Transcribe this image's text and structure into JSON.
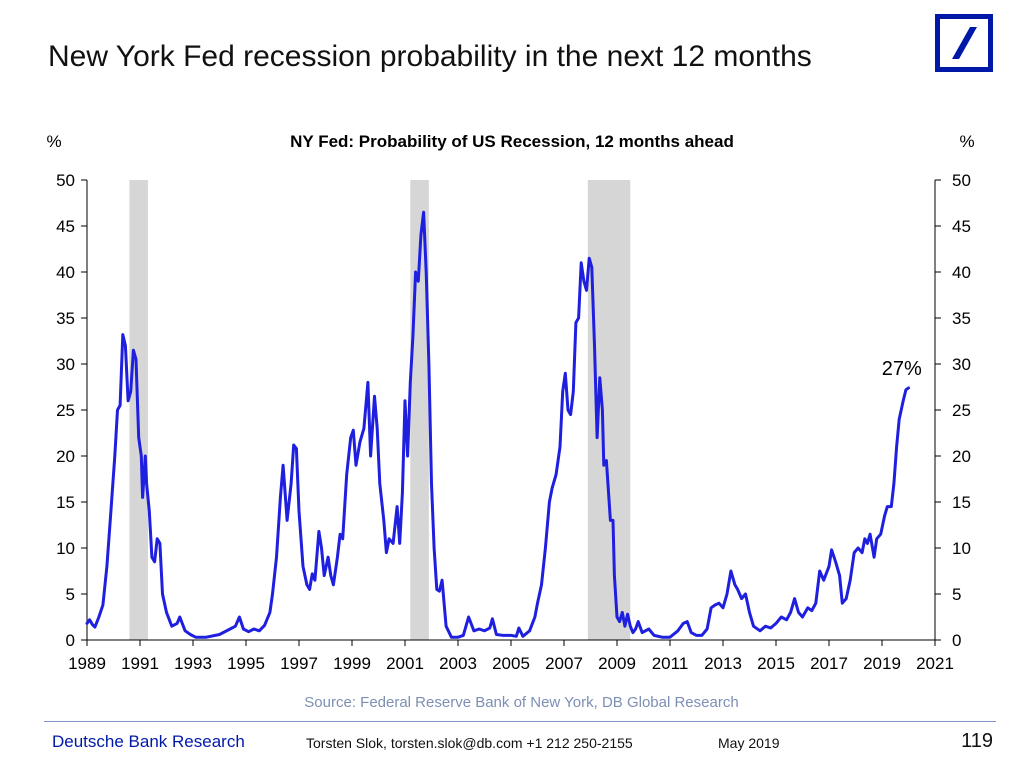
{
  "slide": {
    "title": "New York Fed recession probability in the next 12 months",
    "source": "Source: Federal Reserve Bank of New York, DB Global Research",
    "footer": {
      "brand": "Deutsche Bank Research",
      "author": "Torsten Slok, torsten.slok@db.com  +1 212 250-2155",
      "date": "May 2019",
      "page": "119"
    },
    "logo_color": "#0018a8"
  },
  "chart_data": {
    "type": "line",
    "title": "NY Fed: Probability of US Recession, 12 months ahead",
    "ylabel_left": "%",
    "ylabel_right": "%",
    "xlim": [
      1989,
      2021
    ],
    "ylim": [
      0,
      50
    ],
    "x_ticks": [
      "1989",
      "1991",
      "1993",
      "1995",
      "1997",
      "1999",
      "2001",
      "2003",
      "2005",
      "2007",
      "2009",
      "2011",
      "2013",
      "2015",
      "2017",
      "2019",
      "2021"
    ],
    "y_ticks": [
      "0",
      "5",
      "10",
      "15",
      "20",
      "25",
      "30",
      "35",
      "40",
      "45",
      "50"
    ],
    "annotation": {
      "text": "27%",
      "x": 2020.2,
      "y": 27.4
    },
    "recessions": [
      [
        1990.6,
        1991.3
      ],
      [
        2001.2,
        2001.9
      ],
      [
        2007.9,
        2009.5
      ]
    ],
    "line_color": "#1f1fe0",
    "series": [
      {
        "points": [
          [
            1989.0,
            1.8
          ],
          [
            1989.1,
            2.2
          ],
          [
            1989.2,
            1.7
          ],
          [
            1989.3,
            1.4
          ],
          [
            1989.45,
            2.5
          ],
          [
            1989.6,
            3.8
          ],
          [
            1989.75,
            8.0
          ],
          [
            1989.9,
            14.0
          ],
          [
            1990.05,
            20.0
          ],
          [
            1990.15,
            25.0
          ],
          [
            1990.25,
            25.5
          ],
          [
            1990.35,
            33.2
          ],
          [
            1990.45,
            32.0
          ],
          [
            1990.55,
            26.0
          ],
          [
            1990.65,
            27.0
          ],
          [
            1990.75,
            31.5
          ],
          [
            1990.85,
            30.5
          ],
          [
            1990.95,
            22.0
          ],
          [
            1991.05,
            20.0
          ],
          [
            1991.1,
            15.5
          ],
          [
            1991.2,
            20.0
          ],
          [
            1991.25,
            17.0
          ],
          [
            1991.35,
            14.0
          ],
          [
            1991.45,
            9.0
          ],
          [
            1991.55,
            8.5
          ],
          [
            1991.65,
            11.0
          ],
          [
            1991.75,
            10.5
          ],
          [
            1991.85,
            5.0
          ],
          [
            1992.0,
            3.0
          ],
          [
            1992.2,
            1.5
          ],
          [
            1992.4,
            1.8
          ],
          [
            1992.5,
            2.5
          ],
          [
            1992.7,
            1.0
          ],
          [
            1992.9,
            0.6
          ],
          [
            1993.1,
            0.3
          ],
          [
            1993.5,
            0.3
          ],
          [
            1994.0,
            0.6
          ],
          [
            1994.4,
            1.2
          ],
          [
            1994.6,
            1.5
          ],
          [
            1994.75,
            2.5
          ],
          [
            1994.9,
            1.2
          ],
          [
            1995.1,
            0.9
          ],
          [
            1995.3,
            1.2
          ],
          [
            1995.5,
            1.0
          ],
          [
            1995.7,
            1.6
          ],
          [
            1995.9,
            3.0
          ],
          [
            1996.0,
            5.0
          ],
          [
            1996.15,
            9.0
          ],
          [
            1996.3,
            15.5
          ],
          [
            1996.4,
            19.0
          ],
          [
            1996.55,
            13.0
          ],
          [
            1996.7,
            17.0
          ],
          [
            1996.8,
            21.2
          ],
          [
            1996.9,
            20.8
          ],
          [
            1997.0,
            14.0
          ],
          [
            1997.15,
            8.0
          ],
          [
            1997.3,
            6.0
          ],
          [
            1997.4,
            5.5
          ],
          [
            1997.5,
            7.2
          ],
          [
            1997.6,
            6.5
          ],
          [
            1997.75,
            11.8
          ],
          [
            1997.85,
            10.0
          ],
          [
            1997.95,
            7.0
          ],
          [
            1998.1,
            9.0
          ],
          [
            1998.2,
            7.0
          ],
          [
            1998.3,
            6.0
          ],
          [
            1998.45,
            9.0
          ],
          [
            1998.55,
            11.5
          ],
          [
            1998.65,
            11.0
          ],
          [
            1998.8,
            18.0
          ],
          [
            1998.95,
            22.0
          ],
          [
            1999.05,
            22.8
          ],
          [
            1999.15,
            19.0
          ],
          [
            1999.3,
            21.5
          ],
          [
            1999.45,
            23.0
          ],
          [
            1999.6,
            28.0
          ],
          [
            1999.7,
            20.0
          ],
          [
            1999.85,
            26.5
          ],
          [
            1999.95,
            23.0
          ],
          [
            2000.05,
            17.0
          ],
          [
            2000.2,
            13.0
          ],
          [
            2000.3,
            9.5
          ],
          [
            2000.4,
            11.0
          ],
          [
            2000.55,
            10.5
          ],
          [
            2000.7,
            14.5
          ],
          [
            2000.8,
            10.5
          ],
          [
            2000.9,
            16.0
          ],
          [
            2001.0,
            26.0
          ],
          [
            2001.1,
            20.0
          ],
          [
            2001.2,
            28.0
          ],
          [
            2001.3,
            33.0
          ],
          [
            2001.4,
            40.0
          ],
          [
            2001.5,
            39.0
          ],
          [
            2001.6,
            44.0
          ],
          [
            2001.7,
            46.5
          ],
          [
            2001.8,
            40.0
          ],
          [
            2001.9,
            30.0
          ],
          [
            2002.0,
            17.0
          ],
          [
            2002.1,
            10.0
          ],
          [
            2002.2,
            5.5
          ],
          [
            2002.3,
            5.3
          ],
          [
            2002.4,
            6.5
          ],
          [
            2002.55,
            1.5
          ],
          [
            2002.75,
            0.3
          ],
          [
            2003.0,
            0.3
          ],
          [
            2003.2,
            0.5
          ],
          [
            2003.4,
            2.5
          ],
          [
            2003.6,
            1.0
          ],
          [
            2003.8,
            1.2
          ],
          [
            2004.0,
            1.0
          ],
          [
            2004.2,
            1.3
          ],
          [
            2004.3,
            2.3
          ],
          [
            2004.45,
            0.6
          ],
          [
            2004.7,
            0.5
          ],
          [
            2005.0,
            0.5
          ],
          [
            2005.2,
            0.4
          ],
          [
            2005.3,
            1.3
          ],
          [
            2005.45,
            0.4
          ],
          [
            2005.7,
            1.0
          ],
          [
            2005.9,
            2.5
          ],
          [
            2006.0,
            4.0
          ],
          [
            2006.15,
            6.0
          ],
          [
            2006.3,
            10.0
          ],
          [
            2006.45,
            15.0
          ],
          [
            2006.55,
            16.5
          ],
          [
            2006.7,
            18.0
          ],
          [
            2006.85,
            21.0
          ],
          [
            2006.95,
            27.0
          ],
          [
            2007.05,
            29.0
          ],
          [
            2007.15,
            25.0
          ],
          [
            2007.25,
            24.5
          ],
          [
            2007.35,
            27.0
          ],
          [
            2007.45,
            34.5
          ],
          [
            2007.55,
            35.0
          ],
          [
            2007.65,
            41.0
          ],
          [
            2007.75,
            39.0
          ],
          [
            2007.85,
            38.0
          ],
          [
            2007.95,
            41.5
          ],
          [
            2008.05,
            40.5
          ],
          [
            2008.15,
            32.0
          ],
          [
            2008.25,
            22.0
          ],
          [
            2008.35,
            28.5
          ],
          [
            2008.45,
            25.0
          ],
          [
            2008.5,
            19.0
          ],
          [
            2008.6,
            19.5
          ],
          [
            2008.75,
            13.0
          ],
          [
            2008.85,
            13.0
          ],
          [
            2008.9,
            7.0
          ],
          [
            2009.0,
            2.5
          ],
          [
            2009.1,
            2.0
          ],
          [
            2009.2,
            3.0
          ],
          [
            2009.3,
            1.5
          ],
          [
            2009.4,
            2.8
          ],
          [
            2009.5,
            1.5
          ],
          [
            2009.6,
            0.8
          ],
          [
            2009.7,
            1.2
          ],
          [
            2009.8,
            2.0
          ],
          [
            2009.95,
            0.8
          ],
          [
            2010.2,
            1.2
          ],
          [
            2010.4,
            0.5
          ],
          [
            2010.7,
            0.3
          ],
          [
            2011.0,
            0.3
          ],
          [
            2011.3,
            1.0
          ],
          [
            2011.5,
            1.8
          ],
          [
            2011.65,
            2.0
          ],
          [
            2011.8,
            0.8
          ],
          [
            2012.0,
            0.5
          ],
          [
            2012.2,
            0.5
          ],
          [
            2012.4,
            1.2
          ],
          [
            2012.55,
            3.5
          ],
          [
            2012.7,
            3.8
          ],
          [
            2012.85,
            4.0
          ],
          [
            2013.0,
            3.5
          ],
          [
            2013.15,
            5.0
          ],
          [
            2013.3,
            7.5
          ],
          [
            2013.45,
            6.0
          ],
          [
            2013.55,
            5.5
          ],
          [
            2013.7,
            4.5
          ],
          [
            2013.85,
            5.0
          ],
          [
            2014.0,
            3.0
          ],
          [
            2014.15,
            1.5
          ],
          [
            2014.4,
            1.0
          ],
          [
            2014.6,
            1.5
          ],
          [
            2014.8,
            1.3
          ],
          [
            2015.0,
            1.8
          ],
          [
            2015.2,
            2.5
          ],
          [
            2015.4,
            2.2
          ],
          [
            2015.55,
            3.0
          ],
          [
            2015.7,
            4.5
          ],
          [
            2015.85,
            3.0
          ],
          [
            2016.0,
            2.5
          ],
          [
            2016.2,
            3.5
          ],
          [
            2016.35,
            3.2
          ],
          [
            2016.5,
            4.0
          ],
          [
            2016.65,
            7.5
          ],
          [
            2016.8,
            6.5
          ],
          [
            2017.0,
            8.0
          ],
          [
            2017.1,
            9.8
          ],
          [
            2017.25,
            8.5
          ],
          [
            2017.4,
            7.0
          ],
          [
            2017.5,
            4.0
          ],
          [
            2017.65,
            4.5
          ],
          [
            2017.8,
            6.5
          ],
          [
            2017.95,
            9.5
          ],
          [
            2018.1,
            10.0
          ],
          [
            2018.25,
            9.5
          ],
          [
            2018.35,
            11.0
          ],
          [
            2018.45,
            10.5
          ],
          [
            2018.55,
            11.5
          ],
          [
            2018.7,
            9.0
          ],
          [
            2018.8,
            11.0
          ],
          [
            2018.95,
            11.5
          ],
          [
            2019.1,
            13.5
          ],
          [
            2019.2,
            14.5
          ],
          [
            2019.35,
            14.5
          ],
          [
            2019.45,
            17.0
          ],
          [
            2019.55,
            21.0
          ],
          [
            2019.65,
            24.0
          ],
          [
            2019.8,
            26.0
          ],
          [
            2019.9,
            27.2
          ],
          [
            2020.0,
            27.4
          ]
        ]
      }
    ]
  }
}
